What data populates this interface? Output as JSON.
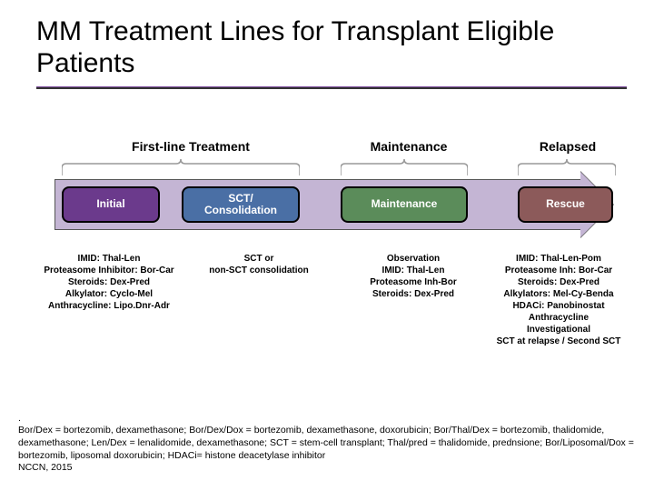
{
  "title": "MM Treatment Lines for Transplant Eligible Patients",
  "headers": {
    "h1": "First-line Treatment",
    "h2": "Maintenance",
    "h3": "Relapsed"
  },
  "phases": {
    "p1": {
      "label": "Initial",
      "bg": "#6b3a8c"
    },
    "p2": {
      "label": "SCT/\nConsolidation",
      "bg": "#4a6fa5"
    },
    "p3": {
      "label": "Maintenance",
      "bg": "#5b8c5a"
    },
    "p4": {
      "label": "Rescue",
      "bg": "#8c5a5a"
    }
  },
  "details": {
    "d1": "IMID: Thal-Len\nProteasome Inhibitor: Bor-Car\nSteroids: Dex-Pred\nAlkylator: Cyclo-Mel\nAnthracycline: Lipo.Dnr-Adr",
    "d2": "SCT or\nnon-SCT consolidation",
    "d3": "Observation\nIMID: Thal-Len\nProteasome Inh-Bor\nSteroids: Dex-Pred",
    "d4": "IMID: Thal-Len-Pom\nProteasome Inh: Bor-Car\nSteroids: Dex-Pred\nAlkylators: Mel-Cy-Benda\nHDACi: Panobinostat\nAnthracycline\nInvestigational\nSCT at relapse / Second SCT"
  },
  "footer": ".\nBor/Dex = bortezomib, dexamethasone; Bor/Dex/Dox = bortezomib, dexamethasone, doxorubicin; Bor/Thal/Dex = bortezomib, thalidomide, dexamethasone; Len/Dex = lenalidomide, dexamethasone; SCT = stem-cell transplant; Thal/pred = thalidomide, prednsione; Bor/Liposomal/Dox = bortezomib, liposomal doxorubicin; HDACi= histone deacetylase inhibitor\nNCCN, 2015",
  "colors": {
    "underline": "#7c4a9c",
    "arrow_fill": "#c4b5d4",
    "arrow_border": "#555555"
  }
}
